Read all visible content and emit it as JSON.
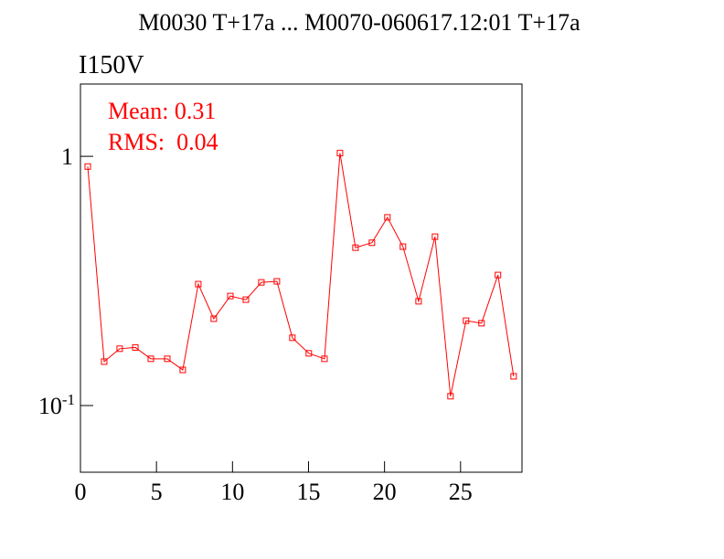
{
  "chart_data": {
    "type": "line",
    "title": "M0030 T+17a ... M0070-060617.12:01 T+17a",
    "subtitle": "I150V",
    "annotations": [
      "Mean: 0.31",
      "RMS:  0.04"
    ],
    "x": [
      0.48,
      1.56,
      2.58,
      3.61,
      4.63,
      5.71,
      6.73,
      7.75,
      8.77,
      9.86,
      10.88,
      11.9,
      12.92,
      13.94,
      15.02,
      16.05,
      17.07,
      18.09,
      19.17,
      20.19,
      21.21,
      22.24,
      23.32,
      24.34,
      25.36,
      26.38,
      27.46,
      28.49
    ],
    "series": [
      {
        "color": "#ff0000",
        "values": [
          0.91,
          0.15,
          0.169,
          0.171,
          0.154,
          0.154,
          0.139,
          0.307,
          0.223,
          0.275,
          0.266,
          0.312,
          0.315,
          0.187,
          0.162,
          0.154,
          1.03,
          0.43,
          0.45,
          0.569,
          0.434,
          0.262,
          0.476,
          0.109,
          0.219,
          0.214,
          0.334,
          0.131
        ]
      }
    ],
    "xlim": [
      0,
      29.04
    ],
    "ylim": [
      0.054,
      1.95
    ],
    "ylog": true,
    "xticks": [
      0,
      5,
      10,
      15,
      20,
      25
    ],
    "yticks": [
      {
        "value": 0.1,
        "label": "10",
        "exponent": "-1"
      },
      1
    ]
  }
}
